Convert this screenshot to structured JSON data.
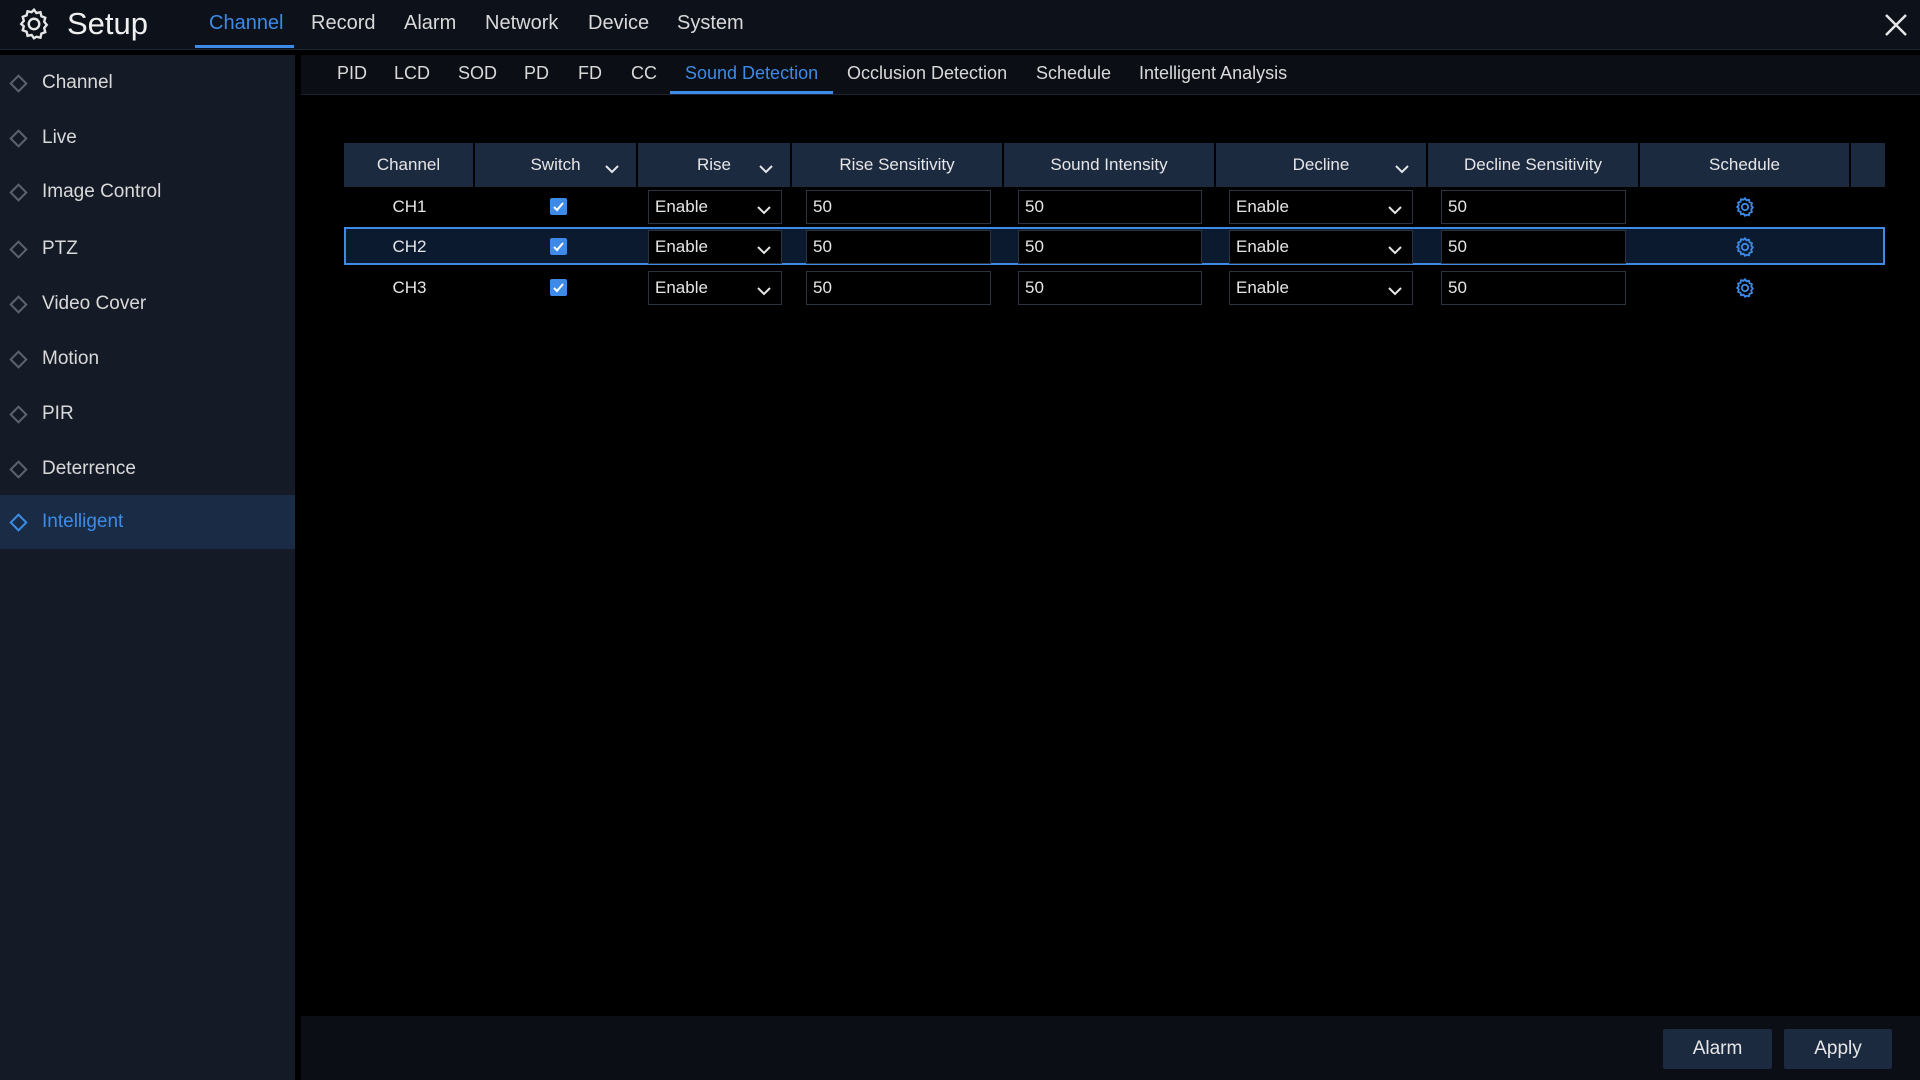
{
  "header": {
    "title": "Setup",
    "tabs": [
      "Channel",
      "Record",
      "Alarm",
      "Network",
      "Device",
      "System"
    ],
    "active_tab": 0
  },
  "sidebar": {
    "items": [
      "Channel",
      "Live",
      "Image Control",
      "PTZ",
      "Video Cover",
      "Motion",
      "PIR",
      "Deterrence",
      "Intelligent"
    ],
    "active": 8
  },
  "subtabs": {
    "items": [
      "PID",
      "LCD",
      "SOD",
      "PD",
      "FD",
      "CC",
      "Sound Detection",
      "Occlusion Detection",
      "Schedule",
      "Intelligent Analysis"
    ],
    "active": 6
  },
  "table": {
    "columns": [
      "Channel",
      "Switch",
      "Rise",
      "Rise Sensitivity",
      "Sound Intensity",
      "Decline",
      "Decline Sensitivity",
      "Schedule"
    ],
    "rows": [
      {
        "channel": "CH1",
        "switch": true,
        "rise": "Enable",
        "rise_sensitivity": 50,
        "sound_intensity": 50,
        "decline": "Enable",
        "decline_sensitivity": 50
      },
      {
        "channel": "CH2",
        "switch": true,
        "rise": "Enable",
        "rise_sensitivity": 50,
        "sound_intensity": 50,
        "decline": "Enable",
        "decline_sensitivity": 50
      },
      {
        "channel": "CH3",
        "switch": true,
        "rise": "Enable",
        "rise_sensitivity": 50,
        "sound_intensity": 50,
        "decline": "Enable",
        "decline_sensitivity": 50
      }
    ],
    "selected_row": 1
  },
  "buttons": [
    "Alarm",
    "Apply"
  ]
}
